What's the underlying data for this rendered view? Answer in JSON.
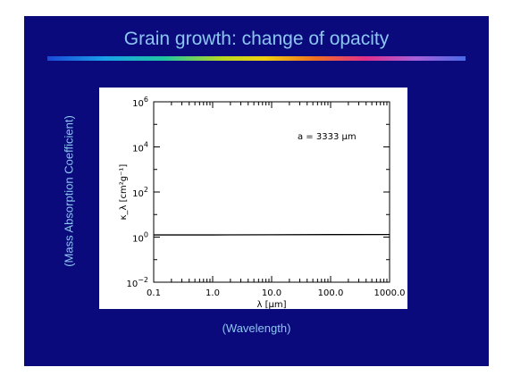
{
  "slide": {
    "title": "Grain growth: change of opacity",
    "ylabel_text": "(Mass Absorption Coefficient)",
    "xlabel_text": "(Wavelength)",
    "background": "#0a0a7c",
    "text_color": "#8cc6f0"
  },
  "chart_data": {
    "type": "line",
    "title": "",
    "xlabel": "λ [μm]",
    "ylabel": "κ_λ [cm²g⁻¹]",
    "xscale": "log",
    "yscale": "log",
    "xlim": [
      0.1,
      1000.0
    ],
    "ylim": [
      0.01,
      1000000
    ],
    "x_ticks": [
      0.1,
      1.0,
      10.0,
      100.0,
      1000.0
    ],
    "x_tick_labels": [
      "0.1",
      "1.0",
      "10.0",
      "100.0",
      "1000.0"
    ],
    "y_ticks": [
      0.01,
      1,
      100,
      10000,
      1000000
    ],
    "y_tick_labels": [
      {
        "base": "10",
        "exp": "−2"
      },
      {
        "base": "10",
        "exp": "0"
      },
      {
        "base": "10",
        "exp": "2"
      },
      {
        "base": "10",
        "exp": "4"
      },
      {
        "base": "10",
        "exp": "6"
      }
    ],
    "annotation": "a = 3333 μm",
    "series": [
      {
        "x": [
          0.1,
          1.0,
          10.0,
          100.0,
          1000.0
        ],
        "y": [
          1.25,
          1.25,
          1.27,
          1.29,
          1.3
        ]
      }
    ],
    "grid": false
  }
}
